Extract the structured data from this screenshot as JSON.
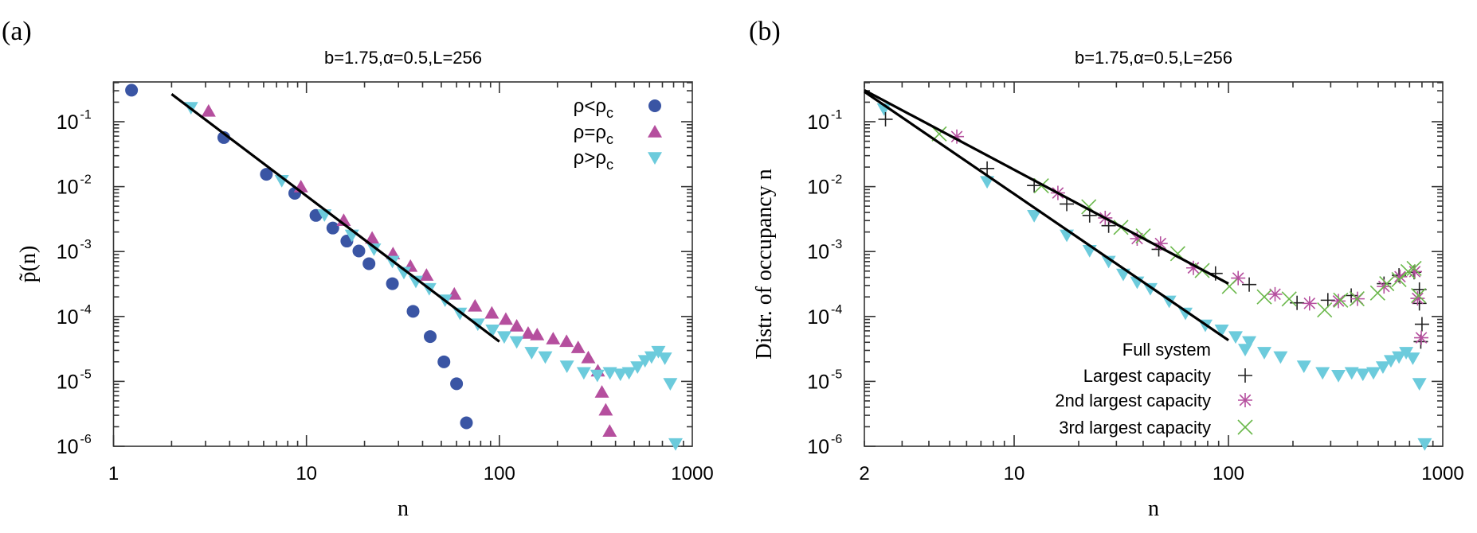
{
  "chart_data": [
    {
      "panel_label": "(a)",
      "type": "scatter",
      "title": "b=1.75,α=0.5,L=256",
      "xlabel": "n",
      "ylabel": "p̃(n)",
      "xscale": "log",
      "yscale": "log",
      "xlim": [
        1,
        1000
      ],
      "ylim": [
        1e-06,
        0.41
      ],
      "xticks": [
        {
          "v": 1,
          "label": "1"
        },
        {
          "v": 10,
          "label": "10"
        },
        {
          "v": 100,
          "label": "100"
        },
        {
          "v": 1000,
          "label": "1000"
        }
      ],
      "yticks": [
        {
          "v": 0.1,
          "m": "10",
          "e": "-1"
        },
        {
          "v": 0.01,
          "m": "10",
          "e": "-2"
        },
        {
          "v": 0.001,
          "m": "10",
          "e": "-3"
        },
        {
          "v": 0.0001,
          "m": "10",
          "e": "-4"
        },
        {
          "v": 1e-05,
          "m": "10",
          "e": "-5"
        },
        {
          "v": 1e-06,
          "m": "10",
          "e": "-6"
        }
      ],
      "grid": false,
      "legend_position": "top-right",
      "series": [
        {
          "name": "ρ<ρc",
          "name_main": "ρ<ρ",
          "name_sub": "c",
          "marker": "circle",
          "color": "#3a55a4",
          "x": [
            1.24,
            3.73,
            6.2,
            8.7,
            11.2,
            13.7,
            16.2,
            18.7,
            21.1,
            27.9,
            35.7,
            43.8,
            51.6,
            60,
            67.5
          ],
          "y": [
            0.306,
            0.057,
            0.0155,
            0.0079,
            0.0036,
            0.0023,
            0.00145,
            0.00102,
            0.00065,
            0.00032,
            0.00012,
            4.9e-05,
            2e-05,
            9.2e-06,
            2.3e-06
          ]
        },
        {
          "name": "ρ=ρc",
          "name_main": "ρ=ρ",
          "name_sub": "c",
          "marker": "triangle-up",
          "color": "#b54f9e",
          "x": [
            3.11,
            9.36,
            15.6,
            21.9,
            28.1,
            34.6,
            41.9,
            58.4,
            74.8,
            91.4,
            108,
            123,
            141,
            157,
            190,
            223,
            256,
            289,
            324,
            340,
            356,
            373
          ],
          "y": [
            0.145,
            0.0099,
            0.003,
            0.0016,
            0.00092,
            0.00059,
            0.00043,
            0.00022,
            0.000144,
            0.000112,
            9e-05,
            7.1e-05,
            5.5e-05,
            5.2e-05,
            4.5e-05,
            4.1e-05,
            3.3e-05,
            2.3e-05,
            1.44e-05,
            6.8e-06,
            3.6e-06,
            1.7e-06
          ]
        },
        {
          "name": "ρ>ρc",
          "name_main": "ρ>ρ",
          "name_sub": "c",
          "marker": "triangle-down",
          "color": "#6ccbdc",
          "x": [
            2.52,
            7.45,
            12.4,
            17.2,
            22.4,
            27.9,
            32,
            36.9,
            43.3,
            52.3,
            62.5,
            77.3,
            92.2,
            106,
            123,
            147,
            173,
            224,
            274,
            322,
            374,
            424,
            470,
            520,
            569,
            615,
            667,
            721,
            769,
            819
          ],
          "y": [
            0.166,
            0.0125,
            0.0037,
            0.0018,
            0.0011,
            0.00071,
            0.00048,
            0.00035,
            0.00027,
            0.00018,
            0.000113,
            7.7e-05,
            6.2e-05,
            4.9e-05,
            4.1e-05,
            2.8e-05,
            2.4e-05,
            1.73e-05,
            1.37e-05,
            1.25e-05,
            1.37e-05,
            1.3e-05,
            1.37e-05,
            1.68e-05,
            2.1e-05,
            2.4e-05,
            2.9e-05,
            2.3e-05,
            9.3e-06,
            1.1e-06
          ]
        }
      ],
      "fit_lines": [
        {
          "x": [
            2,
            100
          ],
          "y": [
            0.266,
            4.1e-05
          ],
          "color": "#000000"
        }
      ]
    },
    {
      "panel_label": "(b)",
      "type": "scatter",
      "title": "b=1.75,α=0.5,L=256",
      "xlabel": "n",
      "ylabel": "Distr. of occupancy n",
      "xscale": "log",
      "yscale": "log",
      "xlim": [
        2,
        1000
      ],
      "ylim": [
        1e-06,
        0.41
      ],
      "xticks": [
        {
          "v": 2,
          "label": "2"
        },
        {
          "v": 10,
          "label": "10"
        },
        {
          "v": 100,
          "label": "100"
        },
        {
          "v": 1000,
          "label": "1000"
        }
      ],
      "yticks": [
        {
          "v": 0.1,
          "m": "10",
          "e": "-1"
        },
        {
          "v": 0.01,
          "m": "10",
          "e": "-2"
        },
        {
          "v": 0.001,
          "m": "10",
          "e": "-3"
        },
        {
          "v": 0.0001,
          "m": "10",
          "e": "-4"
        },
        {
          "v": 1e-05,
          "m": "10",
          "e": "-5"
        },
        {
          "v": 1e-06,
          "m": "10",
          "e": "-6"
        }
      ],
      "grid": false,
      "legend_position": "bottom-center",
      "series": [
        {
          "name": "Full system",
          "marker": "triangle-down",
          "color": "#6ccbdc",
          "x": [
            2.47,
            7.48,
            12.4,
            17.6,
            22.5,
            27.6,
            32.3,
            37.5,
            43.2,
            52.9,
            63,
            78,
            93,
            108,
            125,
            147,
            175,
            225,
            275,
            326,
            376,
            424,
            475,
            526,
            573,
            625,
            675,
            725,
            778,
            824
          ],
          "y": [
            0.158,
            0.012,
            0.0036,
            0.0018,
            0.00104,
            0.00071,
            0.00045,
            0.00034,
            0.00027,
            0.000173,
            0.000113,
            7.4e-05,
            6.2e-05,
            4.9e-05,
            4.1e-05,
            2.8e-05,
            2.4e-05,
            1.73e-05,
            1.37e-05,
            1.24e-05,
            1.37e-05,
            1.3e-05,
            1.37e-05,
            1.68e-05,
            2.1e-05,
            2.4e-05,
            2.8e-05,
            2.3e-05,
            9.3e-06,
            1.1e-06
          ]
        },
        {
          "name": "Largest capacity",
          "marker": "plus",
          "color": "#222222",
          "x": [
            2.51,
            7.48,
            12.4,
            17.6,
            22.5,
            27.6,
            47.3,
            87,
            125,
            209,
            291,
            374,
            532,
            625,
            735,
            778,
            778,
            800,
            790
          ],
          "y": [
            0.109,
            0.019,
            0.0104,
            0.0054,
            0.0036,
            0.0025,
            0.00108,
            0.00046,
            0.00031,
            0.000162,
            0.000178,
            0.00021,
            0.00032,
            0.00043,
            0.00048,
            0.00026,
            0.000159,
            7.6e-05,
            4.1e-05
          ]
        },
        {
          "name": "2nd largest capacity",
          "marker": "asterisk",
          "color": "#b54f9e",
          "x": [
            5.4,
            16,
            26.6,
            37.5,
            48.2,
            68.6,
            111,
            165,
            239,
            326,
            400,
            532,
            632,
            741,
            763,
            794
          ],
          "y": [
            0.059,
            0.008,
            0.0033,
            0.00158,
            0.00133,
            0.00056,
            0.00039,
            0.00022,
            0.000159,
            0.000173,
            0.000187,
            0.00029,
            0.00041,
            0.00049,
            0.00019,
            4.7e-05
          ]
        },
        {
          "name": "3rd largest capacity",
          "marker": "cross",
          "color": "#6ab84a",
          "x": [
            4.47,
            13.4,
            22.3,
            31.5,
            40,
            58,
            75.4,
            101,
            147,
            192,
            281,
            334,
            398,
            497,
            548,
            625,
            689,
            735,
            771
          ],
          "y": [
            0.065,
            0.0103,
            0.0049,
            0.00236,
            0.00174,
            0.00093,
            0.00051,
            0.00029,
            0.0002,
            0.000186,
            0.000126,
            0.000178,
            0.000187,
            0.00023,
            0.00032,
            0.00037,
            0.00049,
            0.00055,
            0.00021
          ]
        }
      ],
      "fit_lines": [
        {
          "x": [
            2,
            100
          ],
          "y": [
            0.306,
            0.00032
          ],
          "color": "#000000"
        },
        {
          "x": [
            2,
            100
          ],
          "y": [
            0.29,
            4.3e-05
          ],
          "color": "#000000"
        }
      ]
    }
  ]
}
